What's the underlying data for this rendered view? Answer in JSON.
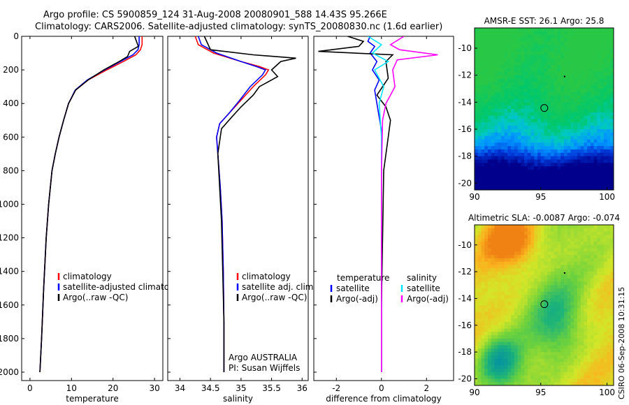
{
  "title_lines": [
    "Argo profile: CS 5900859_124 31-Aug-2008 20080901_588 14.43S 95.266E",
    "Climatology: CARS2006. Satellite-adjusted climatology: synTS_20080830.nc (1.6d earlier)"
  ],
  "side_stamp": "CSIRO 06-Sep-2008 10:31:15",
  "colors": {
    "climatology": "#ff0000",
    "satellite": "#0000ff",
    "argo": "#000000",
    "satellite_sal": "#00e5ff",
    "argo_sal": "#ff00ff",
    "axis": "#000000"
  },
  "chart_data": [
    {
      "id": "temperature",
      "type": "line",
      "xlabel": "temperature",
      "ylabel": "",
      "xlim": [
        -2,
        32
      ],
      "ylim": [
        2050,
        0
      ],
      "xticks": [
        0,
        10,
        20,
        30
      ],
      "yticks": [
        0,
        200,
        400,
        600,
        800,
        1000,
        1200,
        1400,
        1600,
        1800,
        2000
      ],
      "legend": {
        "placement": "lower-right",
        "entries": [
          {
            "label": "climatology",
            "color": "#ff0000"
          },
          {
            "label": "satellite-adjusted climatology",
            "color": "#0000ff"
          },
          {
            "label": "Argo(..raw -QC)",
            "color": "#000000"
          }
        ]
      },
      "series": [
        {
          "name": "climatology",
          "color": "#ff0000",
          "x": [
            27.0,
            27.0,
            26.6,
            25.5,
            22.5,
            18.5,
            14.0,
            11.0,
            9.3,
            8.1,
            7.0,
            6.1,
            5.3,
            4.5,
            3.9,
            3.3,
            2.8,
            2.4
          ],
          "y": [
            0,
            50,
            80,
            110,
            150,
            200,
            260,
            320,
            400,
            500,
            600,
            700,
            800,
            1000,
            1200,
            1500,
            1800,
            2000
          ]
        },
        {
          "name": "satellite-adjusted climatology",
          "color": "#0000ff",
          "x": [
            26.3,
            26.3,
            26.0,
            24.8,
            21.8,
            18.0,
            13.8,
            10.9,
            9.3,
            8.1,
            7.0,
            6.1,
            5.3,
            4.5,
            3.9,
            3.3,
            2.8,
            2.4
          ],
          "y": [
            0,
            50,
            80,
            110,
            150,
            200,
            260,
            320,
            400,
            500,
            600,
            700,
            800,
            1000,
            1200,
            1500,
            1800,
            2000
          ]
        },
        {
          "name": "Argo(..raw -QC)",
          "color": "#000000",
          "x": [
            25.2,
            26.1,
            24.0,
            23.5,
            21.5,
            17.8,
            14.0,
            11.0,
            9.3,
            8.1,
            7.0,
            6.1,
            5.3,
            4.5,
            3.9,
            3.3,
            2.8,
            2.4
          ],
          "y": [
            0,
            60,
            90,
            120,
            150,
            200,
            260,
            320,
            400,
            500,
            600,
            700,
            800,
            1000,
            1200,
            1500,
            1800,
            2000
          ]
        }
      ]
    },
    {
      "id": "salinity",
      "type": "line",
      "xlabel": "salinity",
      "xlim": [
        33.8,
        36.1
      ],
      "ylim": [
        2050,
        0
      ],
      "xticks": [
        34,
        34.5,
        35,
        35.5,
        36
      ],
      "legend": {
        "placement": "lower-right",
        "entries": [
          {
            "label": "climatology",
            "color": "#ff0000"
          },
          {
            "label": "satellite adj. clim.",
            "color": "#0000ff"
          },
          {
            "label": "Argo(..raw -QC)",
            "color": "#000000"
          }
        ]
      },
      "annotations": [
        "Argo AUSTRALIA",
        "PI: Susan Wijffels"
      ],
      "series": [
        {
          "name": "climatology",
          "color": "#ff0000",
          "x": [
            34.25,
            34.3,
            34.55,
            35.0,
            35.3,
            35.45,
            35.4,
            35.2,
            35.0,
            34.8,
            34.65,
            34.6,
            34.62,
            34.66,
            34.69,
            34.71,
            34.72,
            34.72
          ],
          "y": [
            0,
            50,
            100,
            150,
            180,
            200,
            230,
            300,
            380,
            460,
            520,
            600,
            700,
            900,
            1100,
            1400,
            1700,
            2000
          ]
        },
        {
          "name": "satellite adj. clim.",
          "color": "#0000ff",
          "x": [
            34.3,
            34.35,
            34.6,
            35.0,
            35.25,
            35.4,
            35.35,
            35.15,
            34.98,
            34.8,
            34.65,
            34.6,
            34.62,
            34.66,
            34.69,
            34.71,
            34.72,
            34.72
          ],
          "y": [
            0,
            50,
            100,
            150,
            180,
            200,
            230,
            300,
            380,
            460,
            520,
            600,
            700,
            900,
            1100,
            1400,
            1700,
            2000
          ]
        },
        {
          "name": "Argo(..raw -QC)",
          "color": "#000000",
          "x": [
            34.4,
            34.5,
            35.2,
            35.9,
            35.65,
            35.5,
            35.6,
            35.3,
            35.2,
            35.0,
            34.85,
            34.68,
            34.62,
            34.65,
            34.68,
            34.7,
            34.72,
            34.72
          ],
          "y": [
            0,
            80,
            110,
            130,
            150,
            200,
            240,
            300,
            350,
            420,
            480,
            550,
            700,
            900,
            1100,
            1400,
            1700,
            2000
          ]
        }
      ]
    },
    {
      "id": "difference",
      "type": "line",
      "xlabel": "difference from climatology",
      "xlim": [
        -3.0,
        3.2
      ],
      "ylim": [
        2050,
        0
      ],
      "xticks": [
        -2,
        0,
        2
      ],
      "legend": {
        "placement": "lower-center",
        "headers": [
          "temperature",
          "salinity"
        ],
        "temperature": [
          {
            "label": "satellite",
            "color": "#0000ff"
          },
          {
            "label": "Argo(-adj)",
            "color": "#000000"
          }
        ],
        "salinity": [
          {
            "label": "satellite",
            "color": "#00e5ff"
          },
          {
            "label": "Argo(-adj)",
            "color": "#ff00ff"
          }
        ]
      },
      "series": [
        {
          "name": "temperature satellite",
          "color": "#0000ff",
          "x": [
            -0.5,
            -0.6,
            -0.3,
            -0.5,
            -0.2,
            -0.4,
            -0.1,
            -0.3,
            -0.2,
            -0.1,
            0.0,
            0.0,
            0.0,
            0.0,
            0.0
          ],
          "y": [
            0,
            30,
            60,
            100,
            150,
            200,
            260,
            320,
            400,
            480,
            560,
            800,
            1200,
            1600,
            2000
          ]
        },
        {
          "name": "temperature Argo(-adj)",
          "color": "#000000",
          "x": [
            -1.5,
            -0.8,
            -1.0,
            -2.8,
            0.5,
            0.2,
            0.3,
            -0.2,
            0.2,
            0.4,
            0.3,
            0.1,
            0.05,
            0.0,
            0.0
          ],
          "y": [
            0,
            30,
            60,
            90,
            110,
            150,
            250,
            350,
            420,
            500,
            600,
            800,
            1200,
            1600,
            2000
          ]
        },
        {
          "name": "salinity satellite",
          "color": "#00e5ff",
          "x": [
            -0.6,
            0.0,
            -0.4,
            0.3,
            -0.3,
            0.1,
            -0.1,
            0.0,
            0.0,
            0.0
          ],
          "y": [
            0,
            50,
            100,
            150,
            200,
            300,
            400,
            600,
            1200,
            2000
          ]
        },
        {
          "name": "salinity Argo(-adj)",
          "color": "#ff00ff",
          "x": [
            1.0,
            0.4,
            0.8,
            2.5,
            0.7,
            0.5,
            0.6,
            0.4,
            0.2,
            0.05,
            0.0,
            0.0
          ],
          "y": [
            0,
            50,
            80,
            110,
            140,
            200,
            300,
            350,
            400,
            500,
            800,
            2000
          ]
        }
      ]
    },
    {
      "id": "sst_map",
      "type": "heatmap",
      "title": "AMSR-E SST: 26.1  Argo: 25.8",
      "xlim": [
        90,
        100.5
      ],
      "ylim": [
        -20.5,
        -8.5
      ],
      "xticks": [
        90,
        95,
        100
      ],
      "yticks": [
        -10,
        -12,
        -14,
        -16,
        -18,
        -20
      ],
      "profile_position": {
        "lon": 95.266,
        "lat": -14.43
      },
      "marker": {
        "lon": 96.8,
        "lat": -12.1
      }
    },
    {
      "id": "sla_map",
      "type": "heatmap",
      "title": "Altimetric SLA: -0.0087  Argo: -0.074",
      "xlim": [
        90,
        100.5
      ],
      "ylim": [
        -20.5,
        -8.5
      ],
      "xticks": [
        90,
        95,
        100
      ],
      "yticks": [
        -10,
        -12,
        -14,
        -16,
        -18,
        -20
      ],
      "profile_position": {
        "lon": 95.266,
        "lat": -14.43
      },
      "marker": {
        "lon": 96.8,
        "lat": -12.1
      }
    }
  ]
}
